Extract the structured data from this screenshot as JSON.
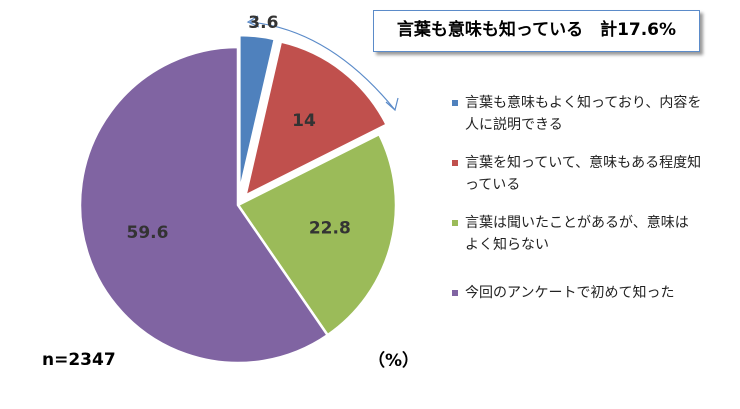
{
  "chart_data": {
    "type": "pie",
    "categories": [
      "言葉も意味もよく知っており、内容を人に説明できる",
      "言葉を知っていて、意味もある程度知っている",
      "言葉は聞いたことがあるが、意味はよく知らない",
      "今回のアンケートで初めて知った"
    ],
    "values": [
      3.6,
      14,
      22.8,
      59.6
    ],
    "colors": [
      "#4f81bd",
      "#c0504d",
      "#9bbb59",
      "#8064a2"
    ],
    "exploded": [
      0,
      1
    ],
    "annotation": "言葉も意味も知っている　計17.6%",
    "sample_size": "n=2347",
    "unit": "（%）"
  }
}
